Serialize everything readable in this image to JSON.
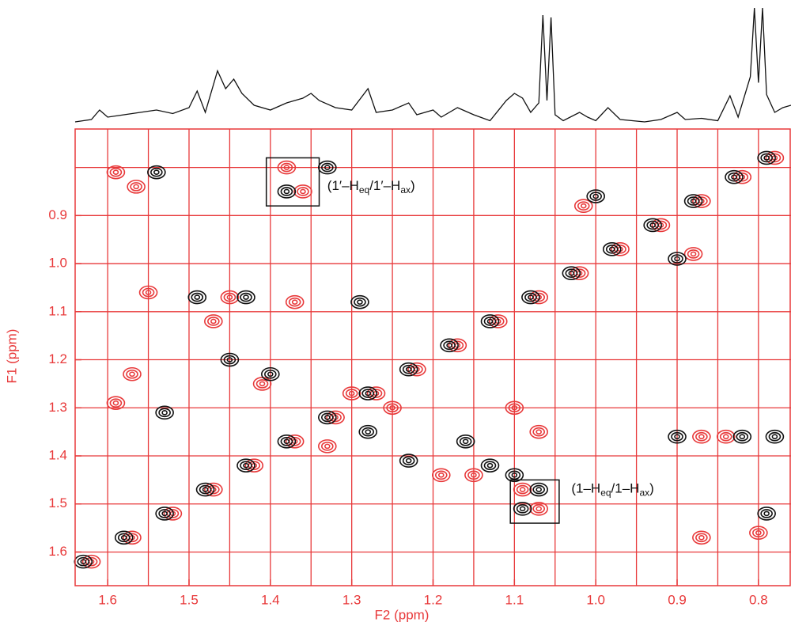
{
  "chart_data": {
    "type": "contour",
    "x_label": "F2 (ppm)",
    "y_label": "F1 (ppm)",
    "xlim": [
      1.64,
      0.76
    ],
    "ylim": [
      0.72,
      1.67
    ],
    "xticks": [
      1.6,
      1.5,
      1.4,
      1.3,
      1.2,
      1.1,
      {
        "value": 1,
        "label": "1.0"
      },
      0.9,
      0.8
    ],
    "yticks": [
      0.9,
      {
        "value": 1,
        "label": "1.0"
      },
      1.1,
      1.2,
      1.3,
      1.4,
      1.5,
      1.6
    ],
    "xgrid": [
      1.6,
      1.55,
      1.5,
      1.45,
      1.4,
      1.35,
      1.3,
      1.25,
      1.2,
      1.15,
      1.1,
      1.05,
      1,
      0.95,
      0.9,
      0.85,
      0.8
    ],
    "ygrid": [
      0.8,
      0.9,
      1,
      1.1,
      1.2,
      1.3,
      1.4,
      1.5,
      1.6
    ],
    "axis_color": "#e8393a",
    "series": [
      {
        "color": "#e8393a",
        "x": [
          1.62,
          1.57,
          1.52,
          1.47,
          1.42,
          1.37,
          1.32,
          1.27,
          1.22,
          1.17,
          1.12,
          1.07,
          1.02,
          0.97,
          0.92,
          0.87,
          0.82,
          0.78,
          1.59,
          1.565,
          1.38,
          1.36,
          1.57,
          1.59,
          1.47,
          1.45,
          1.37,
          1.41,
          1.3,
          1.25,
          1.19,
          1.15,
          1.1,
          1.09,
          1.07,
          1.07,
          0.87,
          0.84,
          0.8,
          0.87,
          1.015,
          0.88,
          1.55,
          1.33
        ],
        "values": [
          1.62,
          1.57,
          1.52,
          1.47,
          1.42,
          1.37,
          1.32,
          1.27,
          1.22,
          1.17,
          1.12,
          1.07,
          1.02,
          0.97,
          0.92,
          0.87,
          0.82,
          0.78,
          0.81,
          0.84,
          0.8,
          0.85,
          1.23,
          1.29,
          1.12,
          1.07,
          1.08,
          1.25,
          1.27,
          1.3,
          1.44,
          1.44,
          1.3,
          1.47,
          1.51,
          1.35,
          1.36,
          1.36,
          1.56,
          1.57,
          0.88,
          0.98,
          1.06,
          1.38
        ]
      },
      {
        "color": "#111111",
        "x": [
          1.63,
          1.58,
          1.53,
          1.48,
          1.43,
          1.38,
          1.33,
          1.28,
          1.23,
          1.18,
          1.13,
          1.08,
          1.03,
          0.98,
          0.93,
          0.88,
          0.83,
          0.79,
          1.54,
          1.33,
          1.38,
          1.45,
          1.4,
          1.53,
          1.49,
          1.43,
          1.29,
          1.1,
          1.07,
          1.09,
          1.13,
          1.23,
          0.9,
          0.82,
          0.79,
          0.78,
          1.0,
          0.9,
          1.16,
          1.28
        ],
        "values": [
          1.62,
          1.57,
          1.52,
          1.47,
          1.42,
          1.37,
          1.32,
          1.27,
          1.22,
          1.17,
          1.12,
          1.07,
          1.02,
          0.97,
          0.92,
          0.87,
          0.82,
          0.78,
          0.81,
          0.8,
          0.85,
          1.2,
          1.23,
          1.31,
          1.07,
          1.07,
          1.08,
          1.44,
          1.47,
          1.51,
          1.42,
          1.41,
          1.36,
          1.36,
          1.52,
          1.36,
          0.86,
          0.99,
          1.37,
          1.35
        ]
      }
    ],
    "projection": {
      "color": "#111111",
      "ylim": [
        0,
        100
      ],
      "x": [
        1.64,
        1.62,
        1.61,
        1.6,
        1.58,
        1.56,
        1.54,
        1.52,
        1.5,
        1.49,
        1.48,
        1.465,
        1.455,
        1.445,
        1.435,
        1.42,
        1.4,
        1.38,
        1.36,
        1.35,
        1.34,
        1.32,
        1.3,
        1.28,
        1.27,
        1.25,
        1.23,
        1.22,
        1.2,
        1.19,
        1.17,
        1.15,
        1.13,
        1.11,
        1.1,
        1.09,
        1.08,
        1.07,
        1.065,
        1.06,
        1.055,
        1.05,
        1.04,
        1.02,
        1.01,
        1,
        0.985,
        0.97,
        0.94,
        0.92,
        0.9,
        0.89,
        0.87,
        0.85,
        0.835,
        0.825,
        0.81,
        0.805,
        0.8,
        0.795,
        0.79,
        0.78,
        0.77,
        0.76
      ],
      "values": [
        2,
        4,
        12,
        6,
        8,
        10,
        12,
        9,
        14,
        28,
        10,
        45,
        30,
        38,
        26,
        16,
        12,
        18,
        22,
        26,
        20,
        14,
        12,
        30,
        10,
        12,
        18,
        8,
        12,
        6,
        14,
        8,
        3,
        20,
        26,
        22,
        10,
        18,
        92,
        20,
        90,
        8,
        3,
        10,
        6,
        3,
        14,
        4,
        2,
        4,
        10,
        4,
        5,
        3,
        24,
        6,
        40,
        98,
        35,
        98,
        25,
        10,
        14,
        16
      ]
    },
    "annotations": [
      {
        "parts": [
          "(1′–H",
          "eq",
          "/1′–H",
          "ax",
          ")"
        ],
        "at": [
          1.33,
          0.84
        ],
        "box": [
          1.405,
          1.34,
          0.78,
          0.88
        ]
      },
      {
        "parts": [
          "(1–H",
          "eq",
          "/1–H",
          "ax",
          ")"
        ],
        "at": [
          1.03,
          1.47
        ],
        "box": [
          1.105,
          1.045,
          1.45,
          1.54
        ]
      }
    ]
  }
}
